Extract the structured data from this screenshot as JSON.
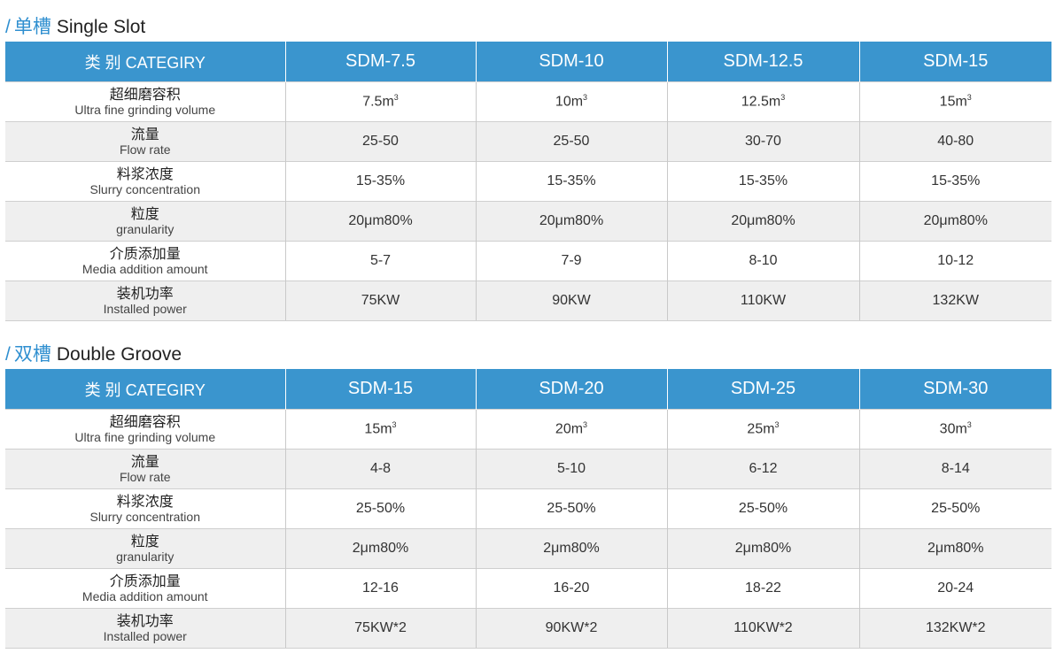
{
  "single": {
    "title_cn": "单槽",
    "title_en": "Single Slot",
    "category": "类 别 CATEGIRY",
    "models": [
      "SDM-7.5",
      "SDM-10",
      "SDM-12.5",
      "SDM-15"
    ],
    "rows": [
      {
        "label_cn": "超细磨容积",
        "label_en": "Ultra fine grinding volume",
        "values": [
          "7.5m",
          "10m",
          "12.5m",
          "15m"
        ],
        "sup": "3"
      },
      {
        "label_cn": "流量",
        "label_en": "Flow rate",
        "values": [
          "25-50",
          "25-50",
          "30-70",
          "40-80"
        ]
      },
      {
        "label_cn": "料浆浓度",
        "label_en": "Slurry concentration",
        "values": [
          "15-35%",
          "15-35%",
          "15-35%",
          "15-35%"
        ]
      },
      {
        "label_cn": "粒度",
        "label_en": "granularity",
        "values": [
          "20μm80%",
          "20μm80%",
          "20μm80%",
          "20μm80%"
        ]
      },
      {
        "label_cn": "介质添加量",
        "label_en": "Media addition amount",
        "values": [
          "5-7",
          "7-9",
          "8-10",
          "10-12"
        ]
      },
      {
        "label_cn": "装机功率",
        "label_en": "Installed power",
        "values": [
          "75KW",
          "90KW",
          "110KW",
          "132KW"
        ]
      }
    ]
  },
  "double": {
    "title_cn": "双槽",
    "title_en": "Double Groove",
    "category": "类 别 CATEGIRY",
    "models": [
      "SDM-15",
      "SDM-20",
      "SDM-25",
      "SDM-30"
    ],
    "rows": [
      {
        "label_cn": "超细磨容积",
        "label_en": "Ultra fine grinding volume",
        "values": [
          "15m",
          "20m",
          "25m",
          "30m"
        ],
        "sup": "3"
      },
      {
        "label_cn": "流量",
        "label_en": "Flow rate",
        "values": [
          "4-8",
          "5-10",
          "6-12",
          "8-14"
        ]
      },
      {
        "label_cn": "料浆浓度",
        "label_en": "Slurry concentration",
        "values": [
          "25-50%",
          "25-50%",
          "25-50%",
          "25-50%"
        ]
      },
      {
        "label_cn": "粒度",
        "label_en": "granularity",
        "values": [
          "2μm80%",
          "2μm80%",
          "2μm80%",
          "2μm80%"
        ]
      },
      {
        "label_cn": "介质添加量",
        "label_en": "Media addition amount",
        "values": [
          "12-16",
          "16-20",
          "18-22",
          "20-24"
        ]
      },
      {
        "label_cn": "装机功率",
        "label_en": "Installed power",
        "values": [
          "75KW*2",
          "90KW*2",
          "110KW*2",
          "132KW*2"
        ]
      }
    ]
  }
}
